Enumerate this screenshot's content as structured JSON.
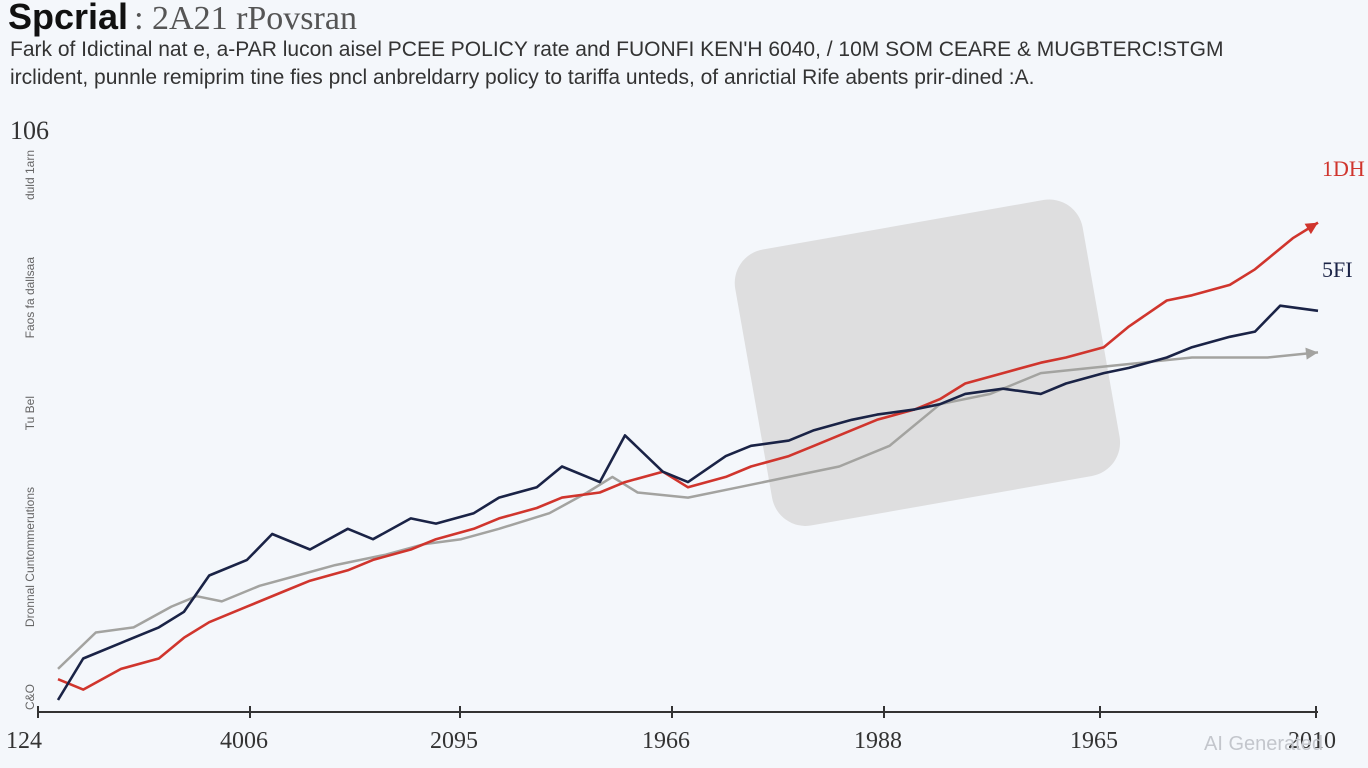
{
  "header": {
    "title_main": "Spcrial",
    "title_rest": ": 2A21 rPovsran",
    "subtitle_line1": "Fark of Idictinal nat e, a-PAR lucon aisel PCEE POLICY rate and FUONFI KEN'H 6040, / 10M SOM CEARE & MUGBTERC!STGM",
    "subtitle_line2": "irclident, punnle remiprim tine fies pncl anbreldarry policy to tariffa unteds, of anrictial Rife abents prir-dined :A."
  },
  "watermark": "AI Generated",
  "y_label_lines": [
    "C&O",
    "Dronnal Cuntommerutions",
    "Tu Bel",
    "Faos fa dallsaa",
    "duld 1arn"
  ],
  "chart_data": {
    "type": "line",
    "title": "Spcrial : 2A21 rPovsran",
    "ytop_label": "106",
    "ylim": [
      0,
      106
    ],
    "x_tick_labels": [
      "124",
      "4006",
      "2095",
      "1966",
      "1988",
      "1965",
      "2010"
    ],
    "grid": false,
    "legend": "end-of-line labels",
    "colors": {
      "red": "#d0352d",
      "navy": "#1a2346",
      "gray": "#a3a3a0",
      "shade": "#d9d9d9"
    },
    "shaded_region": {
      "x_start": 0.55,
      "x_end": 0.83,
      "y_low": 38,
      "y_high": 92
    },
    "series": [
      {
        "name": "1DH",
        "color": "#d0352d",
        "x": [
          0.0,
          0.02,
          0.05,
          0.08,
          0.1,
          0.12,
          0.15,
          0.18,
          0.2,
          0.23,
          0.25,
          0.28,
          0.3,
          0.33,
          0.35,
          0.38,
          0.4,
          0.43,
          0.45,
          0.48,
          0.5,
          0.53,
          0.55,
          0.58,
          0.6,
          0.63,
          0.65,
          0.68,
          0.7,
          0.72,
          0.75,
          0.78,
          0.8,
          0.83,
          0.85,
          0.88,
          0.9,
          0.93,
          0.95,
          0.98,
          1.0
        ],
        "values": [
          4,
          2,
          6,
          8,
          12,
          15,
          18,
          21,
          23,
          25,
          27,
          29,
          31,
          33,
          35,
          37,
          39,
          40,
          42,
          44,
          41,
          43,
          45,
          47,
          49,
          52,
          54,
          56,
          58,
          61,
          63,
          65,
          66,
          68,
          72,
          77,
          78,
          80,
          83,
          89,
          92
        ]
      },
      {
        "name": "5FI",
        "color": "#1a2346",
        "x": [
          0.0,
          0.02,
          0.05,
          0.08,
          0.1,
          0.12,
          0.15,
          0.17,
          0.2,
          0.23,
          0.25,
          0.28,
          0.3,
          0.33,
          0.35,
          0.38,
          0.4,
          0.43,
          0.45,
          0.48,
          0.5,
          0.53,
          0.55,
          0.58,
          0.6,
          0.63,
          0.65,
          0.68,
          0.7,
          0.72,
          0.75,
          0.78,
          0.8,
          0.83,
          0.85,
          0.88,
          0.9,
          0.93,
          0.95,
          0.97,
          1.0
        ],
        "values": [
          0,
          8,
          11,
          14,
          17,
          24,
          27,
          32,
          29,
          33,
          31,
          35,
          34,
          36,
          39,
          41,
          45,
          42,
          51,
          44,
          42,
          47,
          49,
          50,
          52,
          54,
          55,
          56,
          57,
          59,
          60,
          59,
          61,
          63,
          64,
          66,
          68,
          70,
          71,
          76,
          75
        ]
      },
      {
        "name": "",
        "color": "#a3a3a0",
        "x": [
          0.0,
          0.03,
          0.06,
          0.09,
          0.11,
          0.13,
          0.16,
          0.19,
          0.22,
          0.26,
          0.29,
          0.32,
          0.35,
          0.39,
          0.42,
          0.44,
          0.46,
          0.5,
          0.54,
          0.58,
          0.62,
          0.66,
          0.7,
          0.74,
          0.78,
          0.82,
          0.86,
          0.9,
          0.93,
          0.96,
          1.0
        ],
        "values": [
          6,
          13,
          14,
          18,
          20,
          19,
          22,
          24,
          26,
          28,
          30,
          31,
          33,
          36,
          40,
          43,
          40,
          39,
          41,
          43,
          45,
          49,
          57,
          59,
          63,
          64,
          65,
          66,
          66,
          66,
          67
        ]
      }
    ]
  }
}
